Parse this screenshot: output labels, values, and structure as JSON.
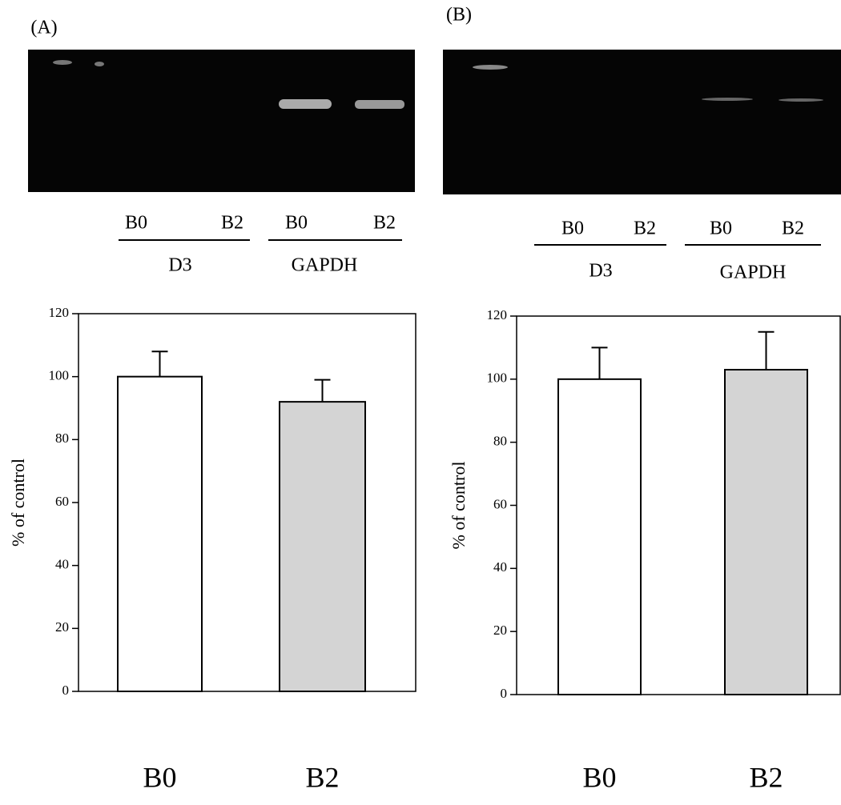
{
  "chart_data": [
    {
      "type": "bar",
      "panel_label": "(A)",
      "gel_lanes": [
        "B0",
        "B2",
        "B0",
        "B2"
      ],
      "gel_groups": [
        "D3",
        "GAPDH"
      ],
      "ylabel": "% of control",
      "categories": [
        "B0",
        "B2"
      ],
      "values": [
        100,
        92
      ],
      "errors": [
        8,
        7
      ],
      "colors": [
        "#ffffff",
        "#d4d4d4"
      ],
      "ylim": [
        0,
        120
      ],
      "yticks": [
        0,
        20,
        40,
        60,
        80,
        100,
        120
      ]
    },
    {
      "type": "bar",
      "panel_label": "(B)",
      "gel_lanes": [
        "B0",
        "B2",
        "B0",
        "B2"
      ],
      "gel_groups": [
        "D3",
        "GAPDH"
      ],
      "ylabel": "% of control",
      "categories": [
        "B0",
        "B2"
      ],
      "values": [
        100,
        103
      ],
      "errors": [
        10,
        12
      ],
      "colors": [
        "#ffffff",
        "#d4d4d4"
      ],
      "ylim": [
        0,
        120
      ],
      "yticks": [
        0,
        20,
        40,
        60,
        80,
        100,
        120
      ]
    }
  ]
}
